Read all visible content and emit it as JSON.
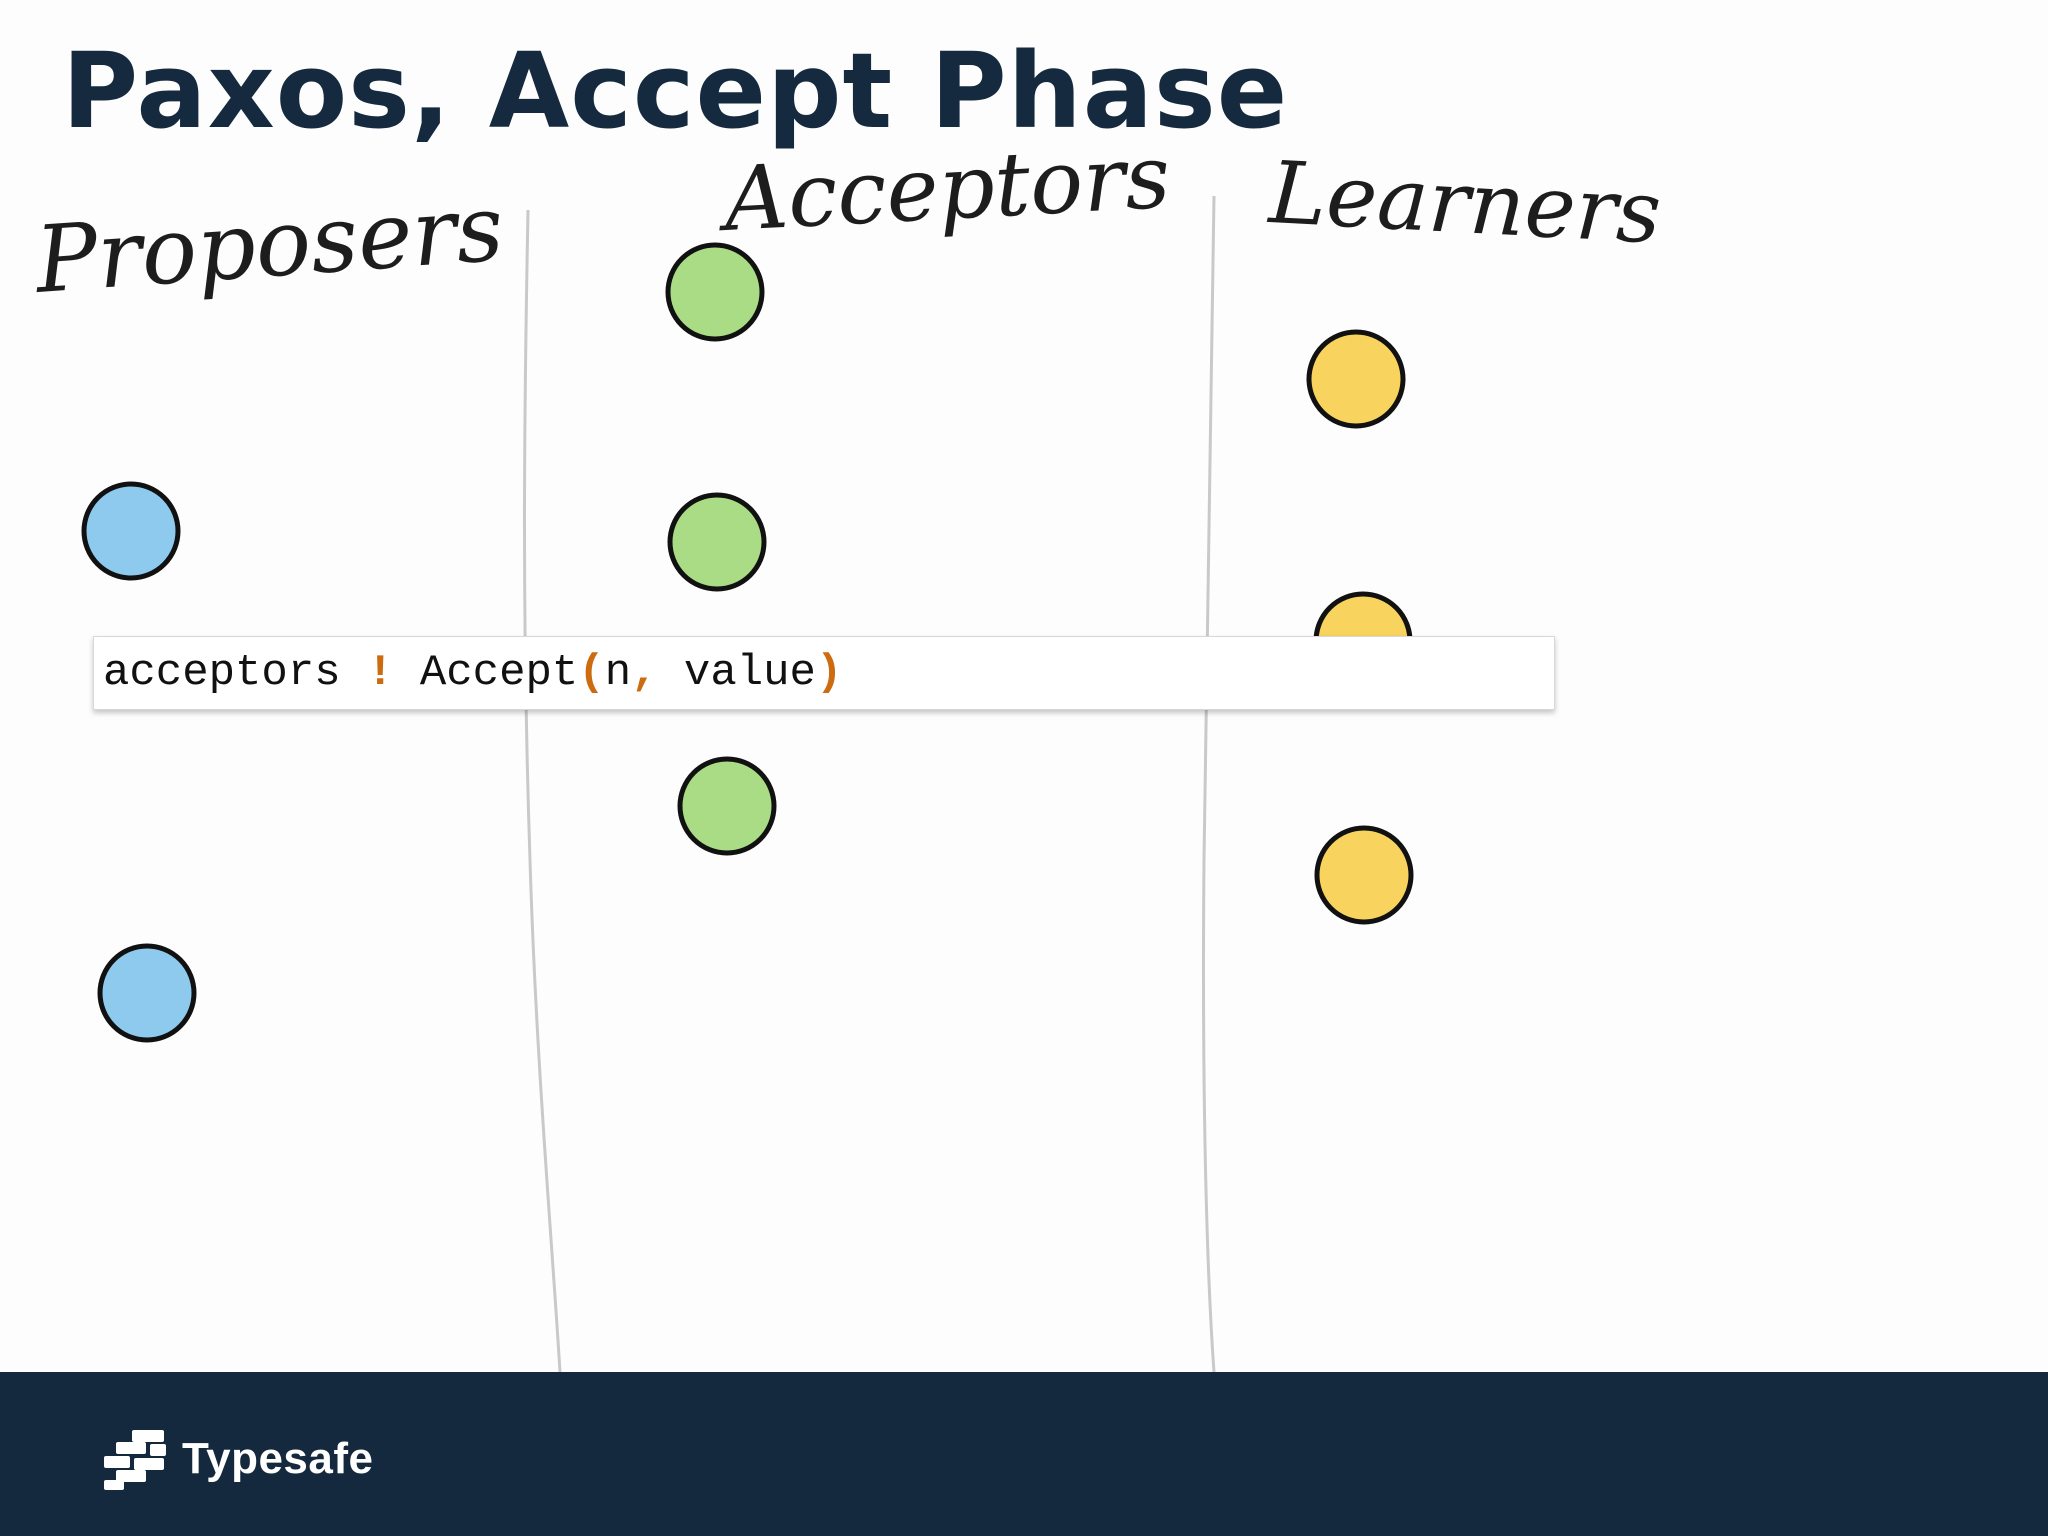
{
  "slide": {
    "title": "Paxos, Accept Phase"
  },
  "diagram": {
    "columns": [
      {
        "label": "Proposers",
        "node_count": 2,
        "node_color": "#8ec9ee"
      },
      {
        "label": "Acceptors",
        "node_count": 3,
        "node_color": "#a9dc84"
      },
      {
        "label": "Learners",
        "node_count": 3,
        "node_color": "#f8d35e"
      }
    ]
  },
  "code": {
    "target": "acceptors",
    "operator": "!",
    "message": "Accept",
    "open_paren": "(",
    "arg1": "n",
    "comma": ",",
    "arg2": "value",
    "close_paren": ")"
  },
  "footer": {
    "brand": "Typesafe"
  },
  "colors": {
    "title": "#15293f",
    "footer_bg": "#14293e",
    "code_accent": "#cc6b10",
    "proposer": "#8ec9ee",
    "acceptor": "#a9dc84",
    "learner": "#f8d35e"
  }
}
